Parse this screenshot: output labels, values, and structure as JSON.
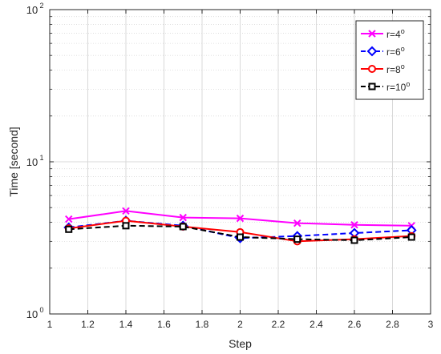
{
  "chart_data": {
    "type": "line",
    "title": "",
    "xlabel": "Step",
    "ylabel": "Time [second]",
    "xlim": [
      1,
      3
    ],
    "ylim": [
      1,
      100
    ],
    "yscale": "log",
    "grid": true,
    "legend_position": "top-right",
    "x_ticks": [
      "1",
      "1.2",
      "1.4",
      "1.6",
      "1.8",
      "2",
      "2.2",
      "2.4",
      "2.6",
      "2.8",
      "3"
    ],
    "y_ticks": [
      {
        "value": 1,
        "base": "10",
        "exp": "0"
      },
      {
        "value": 10,
        "base": "10",
        "exp": "1"
      },
      {
        "value": 100,
        "base": "10",
        "exp": "2"
      }
    ],
    "x": [
      1.1,
      1.4,
      1.7,
      2.0,
      2.3,
      2.6,
      2.9
    ],
    "series": [
      {
        "name": "r=4",
        "name_sup": "o",
        "color": "#ff00ff",
        "dash": "solid",
        "marker": "x",
        "values": [
          4.2,
          4.75,
          4.3,
          4.25,
          3.95,
          3.85,
          3.8
        ]
      },
      {
        "name": "r=6",
        "name_sup": "o",
        "color": "#0000ff",
        "dash": "dashed",
        "marker": "diamond",
        "values": [
          3.7,
          4.1,
          3.8,
          3.15,
          3.25,
          3.4,
          3.55
        ]
      },
      {
        "name": "r=8",
        "name_sup": "o",
        "color": "#ff0000",
        "dash": "solid",
        "marker": "circle",
        "values": [
          3.65,
          4.1,
          3.75,
          3.45,
          3.0,
          3.1,
          3.25
        ]
      },
      {
        "name": "r=10",
        "name_sup": "o",
        "color": "#000000",
        "dash": "dashed",
        "marker": "square",
        "values": [
          3.6,
          3.8,
          3.75,
          3.2,
          3.1,
          3.05,
          3.2
        ]
      }
    ]
  }
}
